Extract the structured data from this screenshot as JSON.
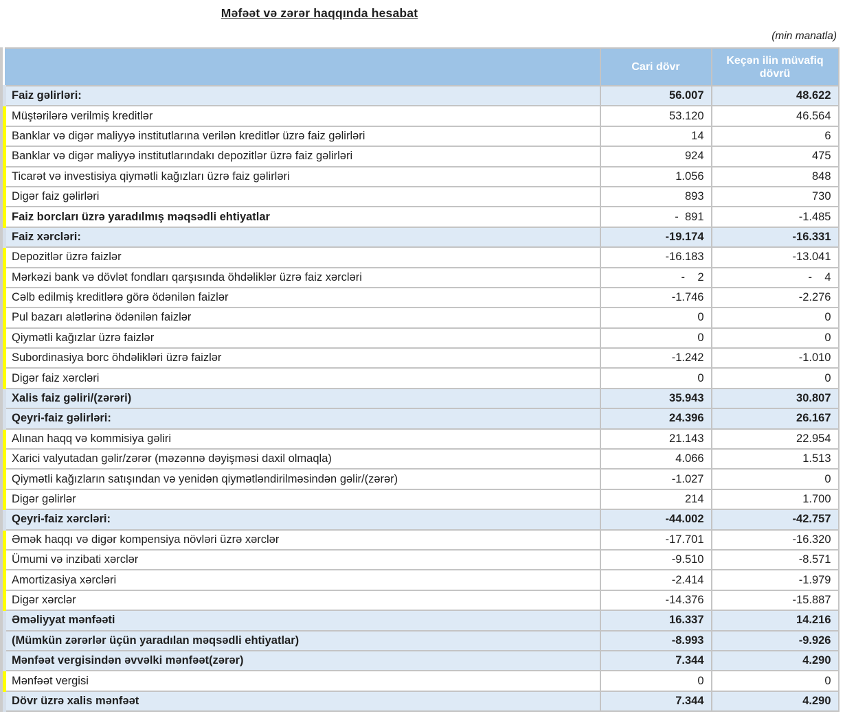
{
  "title": "Məfəət və zərər haqqında hesabat",
  "unit_note": "(min manatla)",
  "colors": {
    "header_bg": "#9dc3e6",
    "header_text": "#ffffff",
    "section_bg": "#deeaf6",
    "section_marker": "#d6dfea",
    "marker_yellow": "#ffff00",
    "grid_line": "#c4c4c4",
    "outer_border": "#cccccc",
    "text": "#1f1f1f"
  },
  "table": {
    "columns": [
      "",
      "Cari dövr",
      "Keçən ilin müvafiq dövrü"
    ],
    "rows": [
      {
        "label": "Faiz gəlirləri:",
        "current": "56.007",
        "previous": "48.622",
        "style": "section"
      },
      {
        "label": "Müştərilərə verilmiş kreditlər",
        "current": "53.120",
        "previous": "46.564",
        "style": "item"
      },
      {
        "label": "Banklar və digər maliyyə institutlarına verilən kreditlər üzrə faiz gəlirləri",
        "current": "14",
        "previous": "6",
        "style": "item"
      },
      {
        "label": "Banklar və digər maliyyə institutlarındakı depozitlər üzrə faiz gəlirləri",
        "current": "924",
        "previous": "475",
        "style": "item"
      },
      {
        "label": "Ticarət və investisiya qiymətli kağızları üzrə faiz gəlirləri",
        "current": "1.056",
        "previous": "848",
        "style": "item"
      },
      {
        "label": "Digər faiz gəlirləri",
        "current": "893",
        "previous": "730",
        "style": "item"
      },
      {
        "label": "Faiz borcları üzrə yaradılmış məqsədli ehtiyatlar",
        "current": "-  891",
        "previous": "-1.485",
        "style": "item-bold"
      },
      {
        "label": "Faiz xərcləri:",
        "current": "-19.174",
        "previous": "-16.331",
        "style": "section"
      },
      {
        "label": "Depozitlər üzrə faizlər",
        "current": "-16.183",
        "previous": "-13.041",
        "style": "item"
      },
      {
        "label": "Mərkəzi bank və dövlət fondları qarşısında öhdəliklər üzrə faiz xərcləri",
        "current": "-    2",
        "previous": "-    4",
        "style": "item"
      },
      {
        "label": "Cəlb edilmiş kreditlərə görə ödənilən faizlər",
        "current": "-1.746",
        "previous": "-2.276",
        "style": "item"
      },
      {
        "label": "Pul bazarı alətlərinə ödənilən faizlər",
        "current": "0",
        "previous": "0",
        "style": "item"
      },
      {
        "label": "Qiymətli kağızlar üzrə faizlər",
        "current": "0",
        "previous": "0",
        "style": "item"
      },
      {
        "label": "Subordinasiya borc öhdəlikləri üzrə faizlər",
        "current": "-1.242",
        "previous": "-1.010",
        "style": "item"
      },
      {
        "label": "Digər faiz xərcləri",
        "current": "0",
        "previous": "0",
        "style": "item"
      },
      {
        "label": "Xalis faiz gəliri/(zərəri)",
        "current": "35.943",
        "previous": "30.807",
        "style": "section"
      },
      {
        "label": "Qeyri-faiz gəlirləri:",
        "current": "24.396",
        "previous": "26.167",
        "style": "section"
      },
      {
        "label": "Alınan haqq və kommisiya gəliri",
        "current": "21.143",
        "previous": "22.954",
        "style": "item"
      },
      {
        "label": "Xarici valyutadan gəlir/zərər (məzənnə dəyişməsi daxil olmaqla)",
        "current": "4.066",
        "previous": "1.513",
        "style": "item"
      },
      {
        "label": "Qiymətli kağızların satışından və yenidən qiymətləndirilməsindən gəlir/(zərər)",
        "current": "-1.027",
        "previous": "0",
        "style": "item"
      },
      {
        "label": "Digər gəlirlər",
        "current": "214",
        "previous": "1.700",
        "style": "item"
      },
      {
        "label": "Qeyri-faiz xərcləri:",
        "current": "-44.002",
        "previous": "-42.757",
        "style": "section"
      },
      {
        "label": "Əmək haqqı və digər kompensiya növləri üzrə xərclər",
        "current": "-17.701",
        "previous": "-16.320",
        "style": "item"
      },
      {
        "label": "Ümumi və inzibati xərclər",
        "current": "-9.510",
        "previous": "-8.571",
        "style": "item"
      },
      {
        "label": "Amortizasiya xərcləri",
        "current": "-2.414",
        "previous": "-1.979",
        "style": "item"
      },
      {
        "label": "Digər xərclər",
        "current": "-14.376",
        "previous": "-15.887",
        "style": "item"
      },
      {
        "label": "Əməliyyat mənfəəti",
        "current": "16.337",
        "previous": "14.216",
        "style": "section"
      },
      {
        "label": "(Mümkün zərərlər üçün yaradılan məqsədli ehtiyatlar)",
        "current": "-8.993",
        "previous": "-9.926",
        "style": "section"
      },
      {
        "label": "Mənfəət vergisindən əvvəlki mənfəət(zərər)",
        "current": "7.344",
        "previous": "4.290",
        "style": "section"
      },
      {
        "label": "Mənfəət vergisi",
        "current": "0",
        "previous": "0",
        "style": "item"
      },
      {
        "label": "Dövr üzrə xalis mənfəət",
        "current": "7.344",
        "previous": "4.290",
        "style": "section"
      }
    ]
  }
}
